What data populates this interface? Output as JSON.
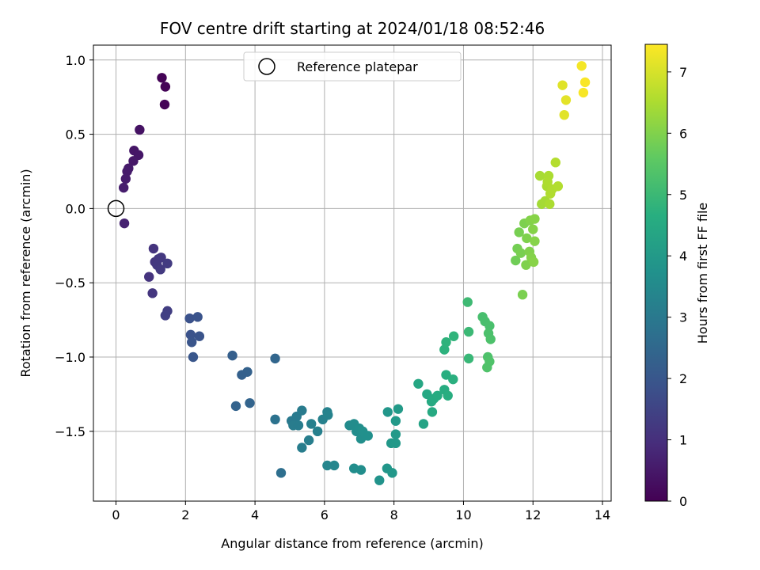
{
  "chart_data": {
    "type": "scatter",
    "title": "FOV centre drift starting at 2024/01/18 08:52:46",
    "xlabel": "Angular distance from reference (arcmin)",
    "ylabel": "Rotation from reference (arcmin)",
    "xlim": [
      -0.65,
      14.25
    ],
    "ylim": [
      -1.97,
      1.1
    ],
    "xticks": [
      0,
      2,
      4,
      6,
      8,
      10,
      12,
      14
    ],
    "xtick_labels": [
      "0",
      "2",
      "4",
      "6",
      "8",
      "10",
      "12",
      "14"
    ],
    "yticks": [
      -1.5,
      -1.0,
      -0.5,
      0.0,
      0.5,
      1.0
    ],
    "ytick_labels": [
      "−1.5",
      "−1.0",
      "−0.5",
      "0.0",
      "0.5",
      "1.0"
    ],
    "grid": true,
    "colormap": "viridis",
    "colorbar": {
      "label": "Hours from first FF file",
      "range": [
        0,
        7.45
      ],
      "ticks": [
        0,
        1,
        2,
        3,
        4,
        5,
        6,
        7
      ],
      "tick_labels": [
        "0",
        "1",
        "2",
        "3",
        "4",
        "5",
        "6",
        "7"
      ]
    },
    "legend": {
      "placement": "upper-center",
      "label": "Reference platepar"
    },
    "reference_point": {
      "x": 0,
      "y": 0
    },
    "points": [
      {
        "x": 1.32,
        "y": 0.88,
        "c": 0.05
      },
      {
        "x": 1.42,
        "y": 0.82,
        "c": 0.06
      },
      {
        "x": 1.4,
        "y": 0.7,
        "c": 0.07
      },
      {
        "x": 0.68,
        "y": 0.53,
        "c": 0.35
      },
      {
        "x": 0.52,
        "y": 0.39,
        "c": 0.42
      },
      {
        "x": 0.65,
        "y": 0.36,
        "c": 0.45
      },
      {
        "x": 0.5,
        "y": 0.32,
        "c": 0.48
      },
      {
        "x": 0.36,
        "y": 0.27,
        "c": 0.52
      },
      {
        "x": 0.32,
        "y": 0.25,
        "c": 0.55
      },
      {
        "x": 0.28,
        "y": 0.2,
        "c": 0.58
      },
      {
        "x": 0.22,
        "y": 0.14,
        "c": 0.6
      },
      {
        "x": 0.24,
        "y": -0.1,
        "c": 0.7
      },
      {
        "x": 1.08,
        "y": -0.27,
        "c": 1.1
      },
      {
        "x": 1.12,
        "y": -0.36,
        "c": 1.15
      },
      {
        "x": 1.22,
        "y": -0.34,
        "c": 1.18
      },
      {
        "x": 1.3,
        "y": -0.33,
        "c": 1.2
      },
      {
        "x": 1.18,
        "y": -0.38,
        "c": 1.22
      },
      {
        "x": 1.28,
        "y": -0.41,
        "c": 1.25
      },
      {
        "x": 1.48,
        "y": -0.37,
        "c": 1.28
      },
      {
        "x": 0.95,
        "y": -0.46,
        "c": 1.1
      },
      {
        "x": 1.05,
        "y": -0.57,
        "c": 1.15
      },
      {
        "x": 1.48,
        "y": -0.69,
        "c": 1.35
      },
      {
        "x": 1.42,
        "y": -0.72,
        "c": 1.38
      },
      {
        "x": 2.12,
        "y": -0.74,
        "c": 1.85
      },
      {
        "x": 2.35,
        "y": -0.73,
        "c": 1.9
      },
      {
        "x": 2.15,
        "y": -0.85,
        "c": 1.88
      },
      {
        "x": 2.4,
        "y": -0.86,
        "c": 1.92
      },
      {
        "x": 2.18,
        "y": -0.9,
        "c": 1.95
      },
      {
        "x": 2.22,
        "y": -1.0,
        "c": 1.98
      },
      {
        "x": 3.35,
        "y": -0.99,
        "c": 2.25
      },
      {
        "x": 3.78,
        "y": -1.1,
        "c": 2.3
      },
      {
        "x": 3.62,
        "y": -1.12,
        "c": 2.28
      },
      {
        "x": 3.45,
        "y": -1.33,
        "c": 2.35
      },
      {
        "x": 3.85,
        "y": -1.31,
        "c": 2.38
      },
      {
        "x": 4.58,
        "y": -1.01,
        "c": 2.45
      },
      {
        "x": 4.58,
        "y": -1.42,
        "c": 2.8
      },
      {
        "x": 4.75,
        "y": -1.78,
        "c": 2.7
      },
      {
        "x": 5.05,
        "y": -1.43,
        "c": 3.0
      },
      {
        "x": 5.2,
        "y": -1.4,
        "c": 3.02
      },
      {
        "x": 5.35,
        "y": -1.36,
        "c": 3.05
      },
      {
        "x": 5.1,
        "y": -1.46,
        "c": 3.08
      },
      {
        "x": 5.25,
        "y": -1.46,
        "c": 3.1
      },
      {
        "x": 5.55,
        "y": -1.56,
        "c": 3.15
      },
      {
        "x": 5.35,
        "y": -1.61,
        "c": 3.12
      },
      {
        "x": 5.62,
        "y": -1.45,
        "c": 3.18
      },
      {
        "x": 5.8,
        "y": -1.5,
        "c": 3.2
      },
      {
        "x": 5.95,
        "y": -1.42,
        "c": 3.25
      },
      {
        "x": 6.08,
        "y": -1.37,
        "c": 3.28
      },
      {
        "x": 6.1,
        "y": -1.39,
        "c": 3.3
      },
      {
        "x": 6.08,
        "y": -1.73,
        "c": 3.35
      },
      {
        "x": 6.28,
        "y": -1.73,
        "c": 3.38
      },
      {
        "x": 6.72,
        "y": -1.46,
        "c": 3.55
      },
      {
        "x": 6.85,
        "y": -1.45,
        "c": 3.58
      },
      {
        "x": 6.92,
        "y": -1.5,
        "c": 3.6
      },
      {
        "x": 7.0,
        "y": -1.48,
        "c": 3.62
      },
      {
        "x": 7.05,
        "y": -1.55,
        "c": 3.65
      },
      {
        "x": 7.1,
        "y": -1.5,
        "c": 3.68
      },
      {
        "x": 7.25,
        "y": -1.53,
        "c": 3.7
      },
      {
        "x": 6.85,
        "y": -1.75,
        "c": 3.6
      },
      {
        "x": 7.05,
        "y": -1.76,
        "c": 3.62
      },
      {
        "x": 7.58,
        "y": -1.83,
        "c": 3.8
      },
      {
        "x": 7.82,
        "y": -1.37,
        "c": 3.9
      },
      {
        "x": 7.8,
        "y": -1.75,
        "c": 3.88
      },
      {
        "x": 7.95,
        "y": -1.78,
        "c": 3.92
      },
      {
        "x": 8.05,
        "y": -1.43,
        "c": 3.98
      },
      {
        "x": 8.12,
        "y": -1.35,
        "c": 4.0
      },
      {
        "x": 8.05,
        "y": -1.52,
        "c": 3.98
      },
      {
        "x": 7.92,
        "y": -1.58,
        "c": 3.95
      },
      {
        "x": 8.05,
        "y": -1.58,
        "c": 3.97
      },
      {
        "x": 8.7,
        "y": -1.18,
        "c": 4.4
      },
      {
        "x": 8.85,
        "y": -1.45,
        "c": 4.3
      },
      {
        "x": 8.95,
        "y": -1.25,
        "c": 4.45
      },
      {
        "x": 9.08,
        "y": -1.3,
        "c": 4.5
      },
      {
        "x": 9.15,
        "y": -1.28,
        "c": 4.52
      },
      {
        "x": 9.25,
        "y": -1.26,
        "c": 4.55
      },
      {
        "x": 9.1,
        "y": -1.37,
        "c": 4.48
      },
      {
        "x": 9.45,
        "y": -1.22,
        "c": 4.6
      },
      {
        "x": 9.55,
        "y": -1.26,
        "c": 4.62
      },
      {
        "x": 9.5,
        "y": -1.12,
        "c": 4.65
      },
      {
        "x": 9.7,
        "y": -1.15,
        "c": 4.7
      },
      {
        "x": 9.45,
        "y": -0.95,
        "c": 4.75
      },
      {
        "x": 9.5,
        "y": -0.9,
        "c": 4.78
      },
      {
        "x": 9.72,
        "y": -0.86,
        "c": 4.82
      },
      {
        "x": 10.12,
        "y": -0.63,
        "c": 5.05
      },
      {
        "x": 10.15,
        "y": -0.83,
        "c": 5.0
      },
      {
        "x": 10.15,
        "y": -1.01,
        "c": 4.95
      },
      {
        "x": 10.55,
        "y": -0.73,
        "c": 5.2
      },
      {
        "x": 10.62,
        "y": -0.76,
        "c": 5.22
      },
      {
        "x": 10.75,
        "y": -0.79,
        "c": 5.25
      },
      {
        "x": 10.72,
        "y": -0.84,
        "c": 5.28
      },
      {
        "x": 10.78,
        "y": -0.88,
        "c": 5.3
      },
      {
        "x": 10.7,
        "y": -1.0,
        "c": 5.32
      },
      {
        "x": 10.75,
        "y": -1.03,
        "c": 5.34
      },
      {
        "x": 10.68,
        "y": -1.07,
        "c": 5.35
      },
      {
        "x": 11.5,
        "y": -0.35,
        "c": 5.8
      },
      {
        "x": 11.55,
        "y": -0.27,
        "c": 5.85
      },
      {
        "x": 11.6,
        "y": -0.16,
        "c": 5.88
      },
      {
        "x": 11.65,
        "y": -0.3,
        "c": 5.9
      },
      {
        "x": 11.75,
        "y": -0.1,
        "c": 5.95
      },
      {
        "x": 11.82,
        "y": -0.2,
        "c": 5.97
      },
      {
        "x": 11.8,
        "y": -0.38,
        "c": 5.98
      },
      {
        "x": 11.9,
        "y": -0.29,
        "c": 6.0
      },
      {
        "x": 11.92,
        "y": -0.08,
        "c": 6.02
      },
      {
        "x": 11.95,
        "y": -0.33,
        "c": 6.03
      },
      {
        "x": 12.0,
        "y": -0.14,
        "c": 6.05
      },
      {
        "x": 12.05,
        "y": -0.07,
        "c": 6.07
      },
      {
        "x": 12.02,
        "y": -0.36,
        "c": 6.08
      },
      {
        "x": 12.05,
        "y": -0.22,
        "c": 6.06
      },
      {
        "x": 11.7,
        "y": -0.58,
        "c": 5.92
      },
      {
        "x": 12.2,
        "y": 0.22,
        "c": 6.45
      },
      {
        "x": 12.25,
        "y": 0.03,
        "c": 6.4
      },
      {
        "x": 12.35,
        "y": 0.05,
        "c": 6.42
      },
      {
        "x": 12.4,
        "y": 0.15,
        "c": 6.48
      },
      {
        "x": 12.45,
        "y": 0.22,
        "c": 6.5
      },
      {
        "x": 12.42,
        "y": 0.18,
        "c": 6.52
      },
      {
        "x": 12.5,
        "y": 0.1,
        "c": 6.55
      },
      {
        "x": 12.55,
        "y": 0.13,
        "c": 6.55
      },
      {
        "x": 12.48,
        "y": 0.03,
        "c": 6.5
      },
      {
        "x": 12.65,
        "y": 0.31,
        "c": 6.6
      },
      {
        "x": 12.72,
        "y": 0.15,
        "c": 6.58
      },
      {
        "x": 12.85,
        "y": 0.83,
        "c": 7.1
      },
      {
        "x": 12.95,
        "y": 0.73,
        "c": 7.15
      },
      {
        "x": 12.9,
        "y": 0.63,
        "c": 7.12
      },
      {
        "x": 13.4,
        "y": 0.96,
        "c": 7.35
      },
      {
        "x": 13.45,
        "y": 0.78,
        "c": 7.38
      },
      {
        "x": 13.5,
        "y": 0.85,
        "c": 7.4
      }
    ]
  }
}
